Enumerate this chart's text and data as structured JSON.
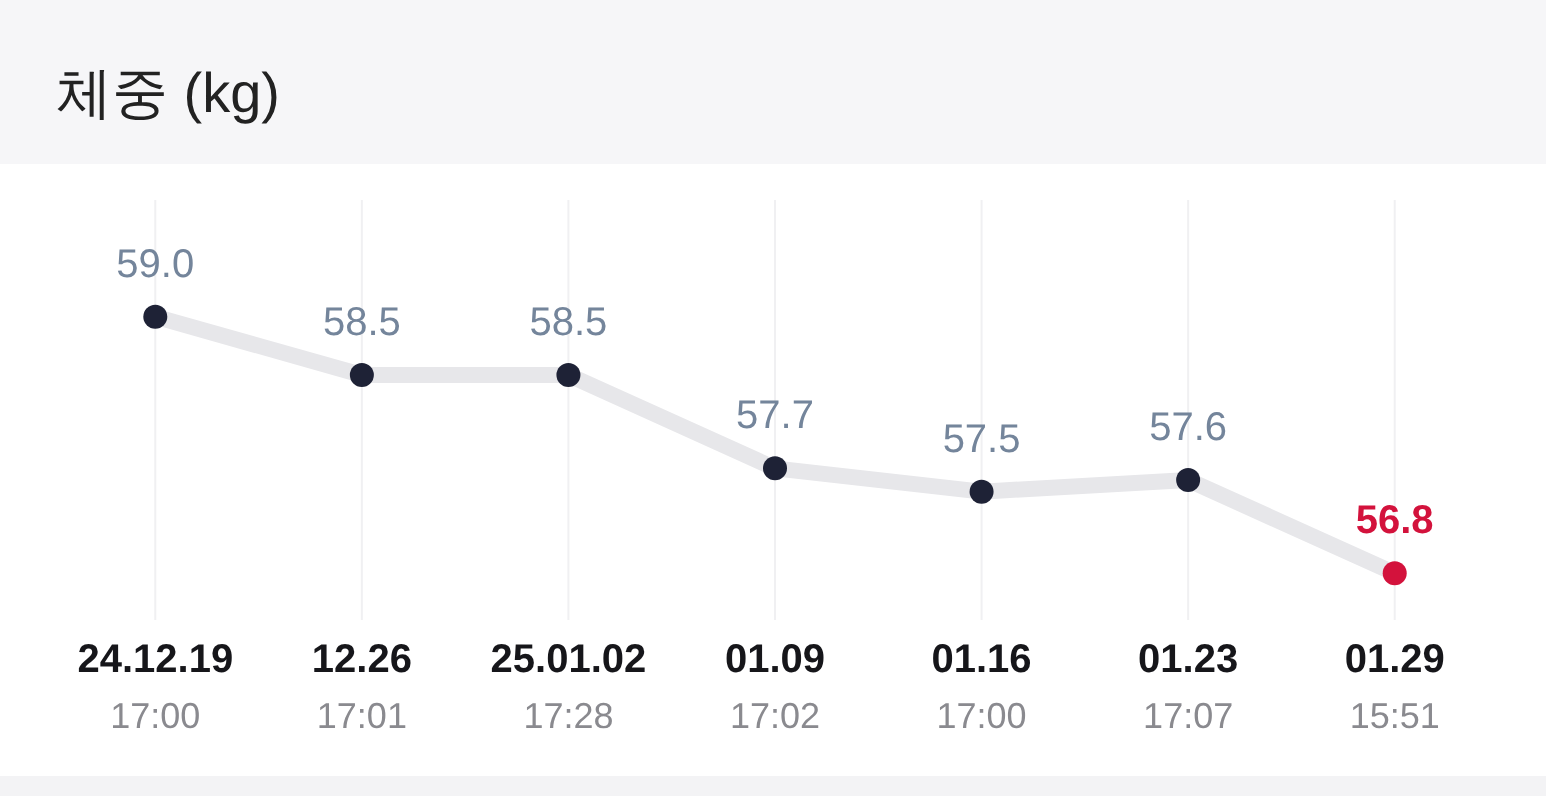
{
  "chart_data": {
    "type": "line",
    "title": "체중 (kg)",
    "categories": [
      "24.12.19\n17:00",
      "12.26\n17:01",
      "25.01.02\n17:28",
      "01.09\n17:02",
      "01.16\n17:00",
      "01.23\n17:07",
      "01.29\n15:51"
    ],
    "series": [
      {
        "color": "#e7e7ea",
        "values": [
          59.0,
          58.5,
          58.5,
          57.7,
          57.5,
          57.6,
          56.8
        ],
        "colors": [
          "#1e2236",
          "#1e2236",
          "#1e2236",
          "#1e2236",
          "#1e2236",
          "#1e2236",
          "#d3123c"
        ],
        "value_labels": [
          "59.0",
          "58.5",
          "58.5",
          "57.7",
          "57.5",
          "57.6",
          "56.8"
        ]
      }
    ],
    "ylim": [
      56.4,
      60.0
    ],
    "grid": "x",
    "marker": "circle",
    "line_style": "solid",
    "tick_labels": "x"
  }
}
